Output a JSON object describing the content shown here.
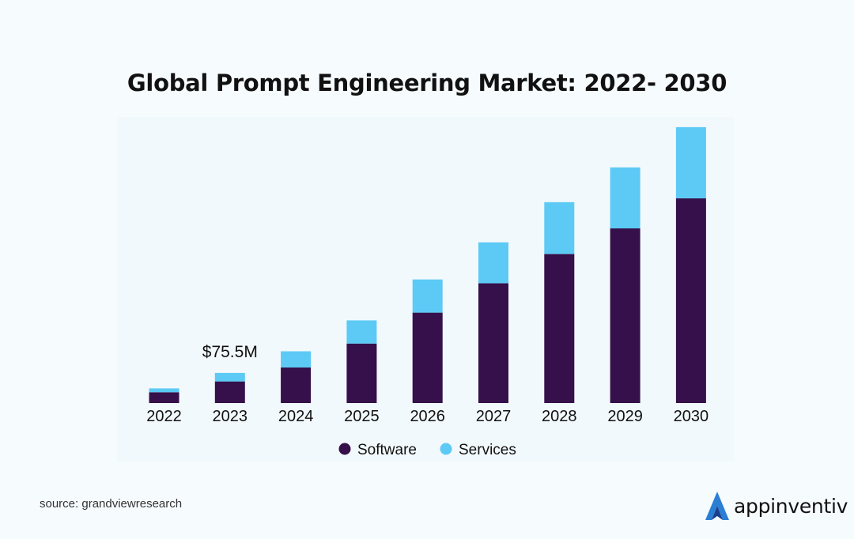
{
  "title": "Global Prompt Engineering Market: 2022- 2030",
  "source": "source: grandviewresearch",
  "brand": "appinventiv",
  "colors": {
    "software": "#35104a",
    "services": "#5ccaf5"
  },
  "chart_data": {
    "type": "bar",
    "stacked": true,
    "title": "Global Prompt Engineering Market: 2022- 2030",
    "categories": [
      "2022",
      "2023",
      "2024",
      "2025",
      "2026",
      "2027",
      "2028",
      "2029",
      "2030"
    ],
    "series": [
      {
        "name": "Software",
        "values": [
          14,
          28,
          46,
          77,
          117,
          155,
          193,
          226,
          265
        ]
      },
      {
        "name": "Services",
        "values": [
          5,
          11,
          21,
          30,
          43,
          53,
          67,
          79,
          92
        ]
      }
    ],
    "annotations": [
      {
        "category": "2023",
        "text": "$75.5M"
      }
    ],
    "legend": "bottom-center",
    "ylim": [
      0,
      360
    ],
    "grid": false
  }
}
